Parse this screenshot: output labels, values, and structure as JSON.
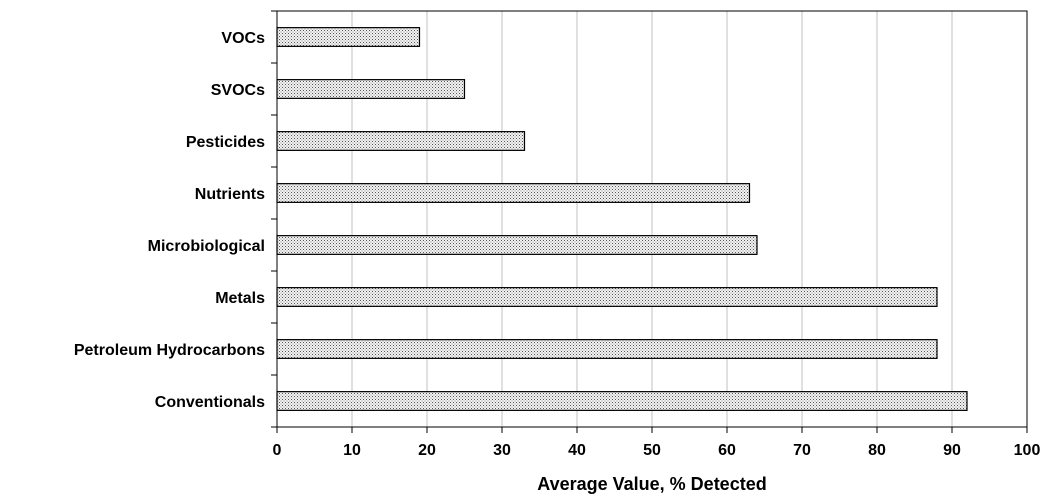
{
  "chart_data": {
    "type": "bar",
    "orientation": "horizontal",
    "categories": [
      "VOCs",
      "SVOCs",
      "Pesticides",
      "Nutrients",
      "Microbiological",
      "Metals",
      "Petroleum Hydrocarbons",
      "Conventionals"
    ],
    "values": [
      19,
      25,
      33,
      63,
      64,
      88,
      88,
      92
    ],
    "title": "",
    "xlabel": "Average Value, % Detected",
    "ylabel": "",
    "xlim": [
      0,
      100
    ],
    "xticks": [
      "0",
      "10",
      "20",
      "30",
      "40",
      "50",
      "60",
      "70",
      "80",
      "90",
      "100"
    ],
    "grid": "vertical",
    "legend": "none",
    "bar_color": "#d9d9d9",
    "bar_pattern": "dotted",
    "bar_border": "#000000"
  }
}
